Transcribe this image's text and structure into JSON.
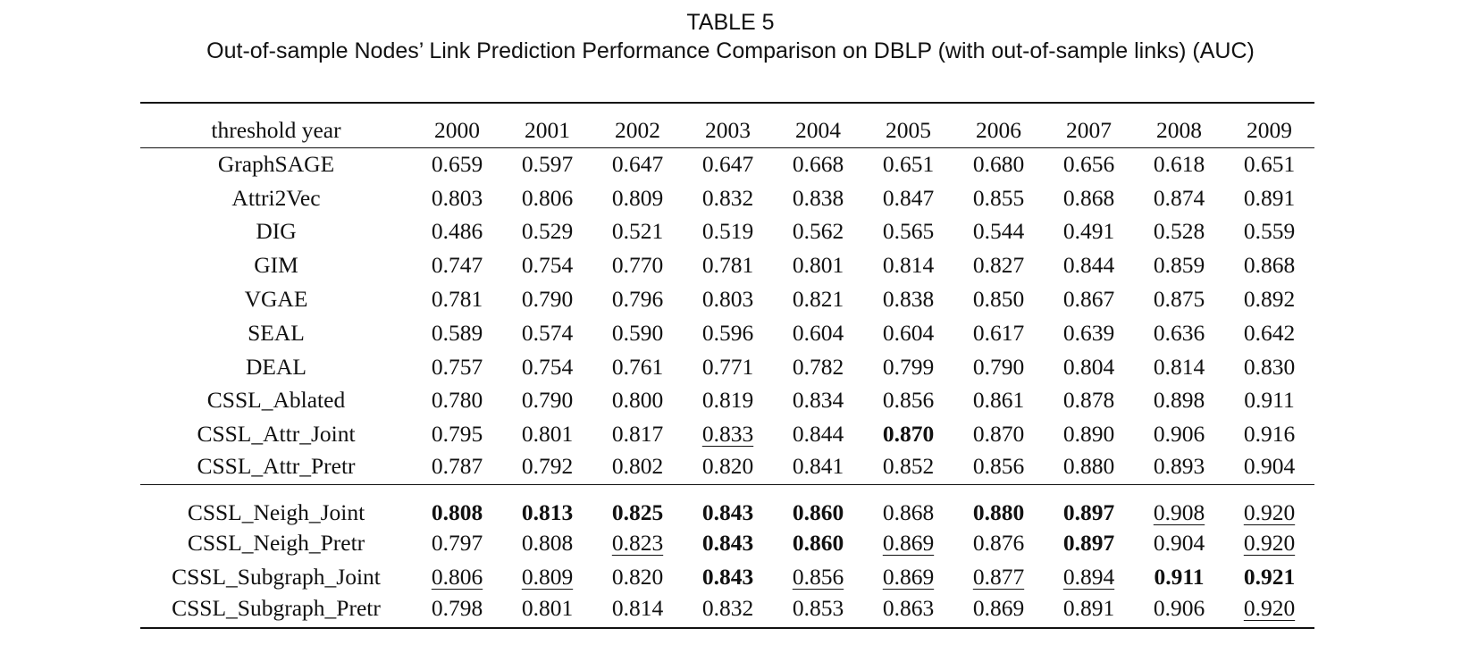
{
  "caption": {
    "label": "TABLE 5",
    "title": "Out-of-sample Nodes’ Link Prediction Performance Comparison on DBLP (with out-of-sample links) (AUC)"
  },
  "table": {
    "header": {
      "method_col": "threshold year",
      "years": [
        "2000",
        "2001",
        "2002",
        "2003",
        "2004",
        "2005",
        "2006",
        "2007",
        "2008",
        "2009"
      ]
    },
    "groups": [
      {
        "rows": [
          {
            "method": "GraphSAGE",
            "values": [
              "0.659",
              "0.597",
              "0.647",
              "0.647",
              "0.668",
              "0.651",
              "0.680",
              "0.656",
              "0.618",
              "0.651"
            ],
            "bold": [],
            "underline": []
          },
          {
            "method": "Attri2Vec",
            "values": [
              "0.803",
              "0.806",
              "0.809",
              "0.832",
              "0.838",
              "0.847",
              "0.855",
              "0.868",
              "0.874",
              "0.891"
            ],
            "bold": [],
            "underline": []
          },
          {
            "method": "DIG",
            "values": [
              "0.486",
              "0.529",
              "0.521",
              "0.519",
              "0.562",
              "0.565",
              "0.544",
              "0.491",
              "0.528",
              "0.559"
            ],
            "bold": [],
            "underline": []
          },
          {
            "method": "GIM",
            "values": [
              "0.747",
              "0.754",
              "0.770",
              "0.781",
              "0.801",
              "0.814",
              "0.827",
              "0.844",
              "0.859",
              "0.868"
            ],
            "bold": [],
            "underline": []
          },
          {
            "method": "VGAE",
            "values": [
              "0.781",
              "0.790",
              "0.796",
              "0.803",
              "0.821",
              "0.838",
              "0.850",
              "0.867",
              "0.875",
              "0.892"
            ],
            "bold": [],
            "underline": []
          },
          {
            "method": "SEAL",
            "values": [
              "0.589",
              "0.574",
              "0.590",
              "0.596",
              "0.604",
              "0.604",
              "0.617",
              "0.639",
              "0.636",
              "0.642"
            ],
            "bold": [],
            "underline": []
          },
          {
            "method": "DEAL",
            "values": [
              "0.757",
              "0.754",
              "0.761",
              "0.771",
              "0.782",
              "0.799",
              "0.790",
              "0.804",
              "0.814",
              "0.830"
            ],
            "bold": [],
            "underline": []
          },
          {
            "method": "CSSL_Ablated",
            "values": [
              "0.780",
              "0.790",
              "0.800",
              "0.819",
              "0.834",
              "0.856",
              "0.861",
              "0.878",
              "0.898",
              "0.911"
            ],
            "bold": [],
            "underline": []
          },
          {
            "method": "CSSL_Attr_Joint",
            "values": [
              "0.795",
              "0.801",
              "0.817",
              "0.833",
              "0.844",
              "0.870",
              "0.870",
              "0.890",
              "0.906",
              "0.916"
            ],
            "bold": [
              5
            ],
            "underline": [
              3
            ]
          },
          {
            "method": "CSSL_Attr_Pretr",
            "values": [
              "0.787",
              "0.792",
              "0.802",
              "0.820",
              "0.841",
              "0.852",
              "0.856",
              "0.880",
              "0.893",
              "0.904"
            ],
            "bold": [],
            "underline": []
          }
        ]
      },
      {
        "rows": [
          {
            "method": "CSSL_Neigh_Joint",
            "values": [
              "0.808",
              "0.813",
              "0.825",
              "0.843",
              "0.860",
              "0.868",
              "0.880",
              "0.897",
              "0.908",
              "0.920"
            ],
            "bold": [
              0,
              1,
              2,
              3,
              4,
              6,
              7
            ],
            "underline": [
              8,
              9
            ]
          },
          {
            "method": "CSSL_Neigh_Pretr",
            "values": [
              "0.797",
              "0.808",
              "0.823",
              "0.843",
              "0.860",
              "0.869",
              "0.876",
              "0.897",
              "0.904",
              "0.920"
            ],
            "bold": [
              3,
              4,
              7
            ],
            "underline": [
              2,
              5,
              9
            ]
          },
          {
            "method": "CSSL_Subgraph_Joint",
            "values": [
              "0.806",
              "0.809",
              "0.820",
              "0.843",
              "0.856",
              "0.869",
              "0.877",
              "0.894",
              "0.911",
              "0.921"
            ],
            "bold": [
              3,
              8,
              9
            ],
            "underline": [
              0,
              1,
              4,
              5,
              6,
              7
            ]
          },
          {
            "method": "CSSL_Subgraph_Pretr",
            "values": [
              "0.798",
              "0.801",
              "0.814",
              "0.832",
              "0.853",
              "0.863",
              "0.869",
              "0.891",
              "0.906",
              "0.920"
            ],
            "bold": [],
            "underline": [
              9
            ]
          }
        ]
      }
    ]
  }
}
